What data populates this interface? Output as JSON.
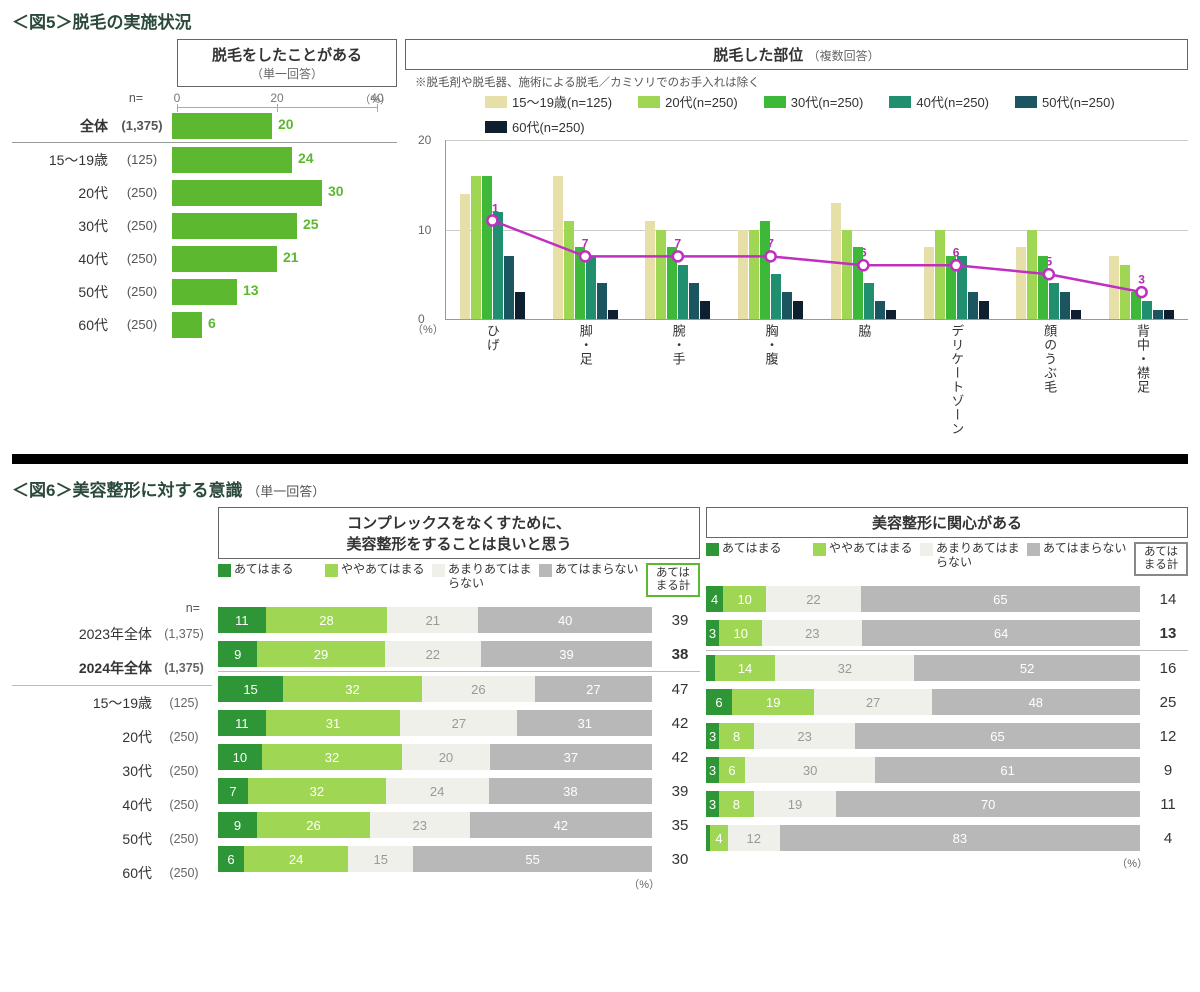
{
  "colors": {
    "bar_green": "#5cb82f",
    "series": [
      "#e6e0a8",
      "#9fd755",
      "#3eb838",
      "#1f8f6f",
      "#1a5560",
      "#0e2030"
    ],
    "line": "#c030c0",
    "seg": [
      "#2f9638",
      "#9fd755",
      "#f0f0ea",
      "#b8b8b8"
    ]
  },
  "fig5": {
    "title": "＜図5＞脱毛の実施状況",
    "left": {
      "box_title": "脱毛をしたことがある",
      "box_sub": "（単一回答）",
      "n_header": "n=",
      "axis": {
        "max": 40,
        "ticks": [
          0,
          20,
          40
        ],
        "unit": "（%）"
      },
      "rows": [
        {
          "label": "全体",
          "n": "(1,375)",
          "value": 20,
          "bold": true
        },
        {
          "label": "15～19歳",
          "n": "(125)",
          "value": 24
        },
        {
          "label": "20代",
          "n": "(250)",
          "value": 30
        },
        {
          "label": "30代",
          "n": "(250)",
          "value": 25
        },
        {
          "label": "40代",
          "n": "(250)",
          "value": 21
        },
        {
          "label": "50代",
          "n": "(250)",
          "value": 13
        },
        {
          "label": "60代",
          "n": "(250)",
          "value": 6
        }
      ]
    },
    "right": {
      "box_title": "脱毛した部位",
      "box_sub": "（複数回答）",
      "note": "※脱毛剤や脱毛器、施術による脱毛／カミソリでのお手入れは除く",
      "legend": [
        "15～19歳(n=125)",
        "20代(n=250)",
        "30代(n=250)",
        "40代(n=250)",
        "50代(n=250)",
        "60代(n=250)"
      ],
      "y": {
        "max": 20,
        "ticks": [
          0,
          10,
          20
        ],
        "unit": "（%）"
      },
      "categories": [
        "ひげ",
        "脚・足",
        "腕・手",
        "胸・腹",
        "脇",
        "デリケートゾーン",
        "顔のうぶ毛",
        "背中・襟足"
      ],
      "series_values": [
        [
          14,
          16,
          16,
          12,
          7,
          3
        ],
        [
          16,
          11,
          8,
          7,
          4,
          1
        ],
        [
          11,
          10,
          8,
          6,
          4,
          2
        ],
        [
          10,
          10,
          11,
          5,
          3,
          2
        ],
        [
          13,
          10,
          8,
          4,
          2,
          1
        ],
        [
          8,
          10,
          7,
          7,
          3,
          2
        ],
        [
          8,
          10,
          7,
          4,
          3,
          1
        ],
        [
          7,
          6,
          3,
          2,
          1,
          1
        ]
      ],
      "line_values": [
        11,
        7,
        7,
        7,
        6,
        6,
        5,
        3
      ]
    }
  },
  "fig6": {
    "title": "＜図6＞美容整形に対する意識",
    "title_sub": "（単一回答）",
    "seg_legend": [
      "あてはまる",
      "ややあてはまる",
      "あまりあてはまらない",
      "あてはまらない"
    ],
    "total_label": "あてはまる計",
    "n_header": "n=",
    "pct": "（%）",
    "row_labels": [
      {
        "label": "2023年全体",
        "n": "(1,375)"
      },
      {
        "label": "2024年全体",
        "n": "(1,375)",
        "bold": true
      },
      {
        "label": "15～19歳",
        "n": "(125)"
      },
      {
        "label": "20代",
        "n": "(250)"
      },
      {
        "label": "30代",
        "n": "(250)"
      },
      {
        "label": "40代",
        "n": "(250)"
      },
      {
        "label": "50代",
        "n": "(250)"
      },
      {
        "label": "60代",
        "n": "(250)"
      }
    ],
    "panels": [
      {
        "title": "コンプレックスをなくすために、\n美容整形をすることは良いと思う",
        "total_border": "green",
        "rows": [
          {
            "seg": [
              11,
              28,
              21,
              40
            ],
            "total": 39
          },
          {
            "seg": [
              9,
              29,
              22,
              39
            ],
            "total": 38,
            "bold": true
          },
          {
            "seg": [
              15,
              32,
              26,
              27
            ],
            "total": 47
          },
          {
            "seg": [
              11,
              31,
              27,
              31
            ],
            "total": 42
          },
          {
            "seg": [
              10,
              32,
              20,
              37
            ],
            "total": 42
          },
          {
            "seg": [
              7,
              32,
              24,
              38
            ],
            "total": 39
          },
          {
            "seg": [
              9,
              26,
              23,
              42
            ],
            "total": 35
          },
          {
            "seg": [
              6,
              24,
              15,
              55
            ],
            "total": 30
          }
        ]
      },
      {
        "title": "美容整形に関心がある",
        "total_border": "gray",
        "rows": [
          {
            "seg": [
              4,
              10,
              22,
              65
            ],
            "total": 14
          },
          {
            "seg": [
              3,
              10,
              23,
              64
            ],
            "total": 13,
            "bold": true
          },
          {
            "seg": [
              2,
              14,
              32,
              52
            ],
            "total": 16
          },
          {
            "seg": [
              6,
              19,
              27,
              48
            ],
            "total": 25
          },
          {
            "seg": [
              3,
              8,
              23,
              65
            ],
            "total": 12
          },
          {
            "seg": [
              3,
              6,
              30,
              61
            ],
            "total": 9
          },
          {
            "seg": [
              3,
              8,
              19,
              70
            ],
            "total": 11
          },
          {
            "seg": [
              1,
              4,
              12,
              83
            ],
            "total": 4
          }
        ]
      }
    ]
  }
}
